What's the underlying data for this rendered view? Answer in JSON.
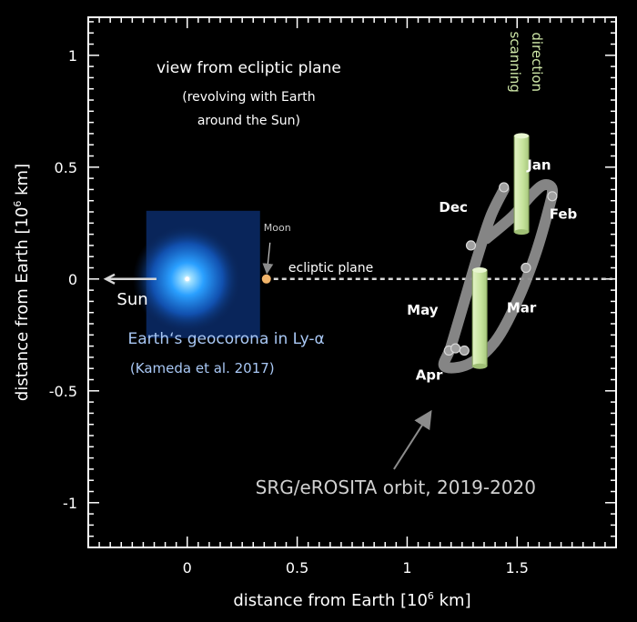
{
  "chart_data": {
    "type": "scatter",
    "xlabel": "distance from Earth [10",
    "xlabel_sup": "6",
    "xlabel_tail": " km]",
    "ylabel": "distance from Earth [10",
    "ylabel_sup": "6",
    "ylabel_tail": " km]",
    "xlim": [
      -0.45,
      1.95
    ],
    "ylim": [
      -1.2,
      1.17
    ],
    "xticks": [
      {
        "value": 0,
        "label": "0"
      },
      {
        "value": 0.5,
        "label": "0.5"
      },
      {
        "value": 1,
        "label": "1"
      },
      {
        "value": 1.5,
        "label": "1.5"
      }
    ],
    "yticks": [
      {
        "value": 1,
        "label": "1"
      },
      {
        "value": 0.5,
        "label": "0.5"
      },
      {
        "value": 0,
        "label": "0"
      },
      {
        "value": -0.5,
        "label": "-0.5"
      },
      {
        "value": -1,
        "label": "-1"
      }
    ],
    "title_lines": [
      "view from ecliptic plane",
      "(revolving with Earth",
      "around the Sun)"
    ],
    "colors": {
      "frame": "#ffffff",
      "orbit": "#8c8c8c",
      "scan_panel": "#cfe8a8",
      "moon": "#f2b46a",
      "geocorona": "#2f8fe8",
      "geocorona_label": "#a9c8f5",
      "arrow": "#8c8c8c"
    },
    "geocorona": {
      "label": "Earth‘s geocorona in Ly-α",
      "citation": "(Kameda et al. 2017)",
      "center": [
        0.0,
        0.0
      ]
    },
    "sun": {
      "label": "Sun"
    },
    "moon": {
      "label": "Moon",
      "x": 0.36,
      "y": 0.0
    },
    "ecliptic": {
      "label": "ecliptic plane",
      "y": 0.0
    },
    "scan": {
      "label_lines": [
        "scanning",
        "direction"
      ]
    },
    "orbit_label": "SRG/eROSITA orbit, 2019-2020",
    "orbit_path": [
      [
        1.36,
        0.18
      ],
      [
        1.48,
        0.28
      ],
      [
        1.56,
        0.37
      ],
      [
        1.62,
        0.42
      ],
      [
        1.66,
        0.4
      ],
      [
        1.64,
        0.3
      ],
      [
        1.58,
        0.1
      ],
      [
        1.5,
        -0.1
      ],
      [
        1.4,
        -0.28
      ],
      [
        1.28,
        -0.38
      ],
      [
        1.17,
        -0.39
      ],
      [
        1.2,
        -0.3
      ],
      [
        1.26,
        -0.1
      ],
      [
        1.32,
        0.1
      ],
      [
        1.38,
        0.28
      ],
      [
        1.44,
        0.4
      ]
    ],
    "months": [
      {
        "label": "Jan",
        "x": 1.6,
        "y": 0.49
      },
      {
        "label": "Feb",
        "x": 1.71,
        "y": 0.27
      },
      {
        "label": "Dec",
        "x": 1.21,
        "y": 0.3
      },
      {
        "label": "Mar",
        "x": 1.52,
        "y": -0.15
      },
      {
        "label": "May",
        "x": 1.07,
        "y": -0.16
      },
      {
        "label": "Apr",
        "x": 1.1,
        "y": -0.45
      }
    ],
    "scan_panels": [
      {
        "x": 1.52,
        "y_top": 0.64,
        "y_bottom": 0.21
      },
      {
        "x": 1.33,
        "y_top": 0.04,
        "y_bottom": -0.39
      }
    ],
    "orbit_markers": [
      {
        "x": 1.44,
        "y": 0.41
      },
      {
        "x": 1.66,
        "y": 0.37
      },
      {
        "x": 1.54,
        "y": 0.05
      },
      {
        "x": 1.29,
        "y": 0.15
      },
      {
        "x": 1.19,
        "y": -0.32
      },
      {
        "x": 1.22,
        "y": -0.31
      },
      {
        "x": 1.26,
        "y": -0.32
      }
    ]
  }
}
